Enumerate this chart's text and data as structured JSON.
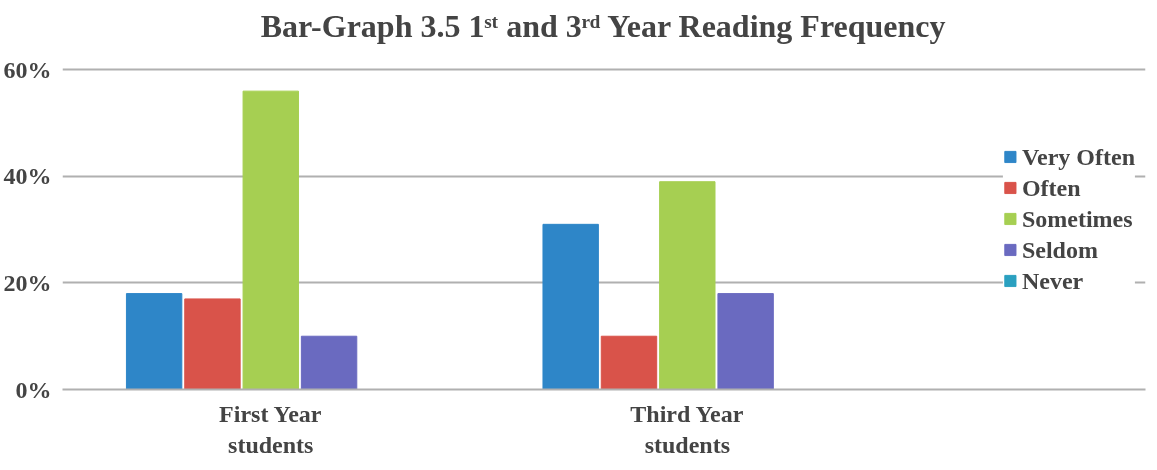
{
  "chart_data": {
    "type": "bar",
    "title": "Bar-Graph 3.5 1ˢᵗ and 3ʳᵈ Year Reading Frequency",
    "categories": [
      "First Year\nstudents",
      "Third Year\nstudents"
    ],
    "series": [
      {
        "name": "Very Often",
        "color": "#2e86c8",
        "values": [
          18,
          31
        ]
      },
      {
        "name": "Often",
        "color": "#d9534a",
        "values": [
          17,
          10
        ]
      },
      {
        "name": "Sometimes",
        "color": "#a6cf52",
        "values": [
          56,
          39
        ]
      },
      {
        "name": "Seldom",
        "color": "#6a6ac0",
        "values": [
          10,
          18
        ]
      },
      {
        "name": "Never",
        "color": "#2aa0c0",
        "values": [
          0,
          0
        ]
      }
    ],
    "ylim": [
      0,
      60
    ],
    "yticks": [
      {
        "value": 0,
        "label": "0%"
      },
      {
        "value": 20,
        "label": "20%"
      },
      {
        "value": 40,
        "label": "40%"
      },
      {
        "value": 60,
        "label": "60%"
      }
    ],
    "grid": "y",
    "legend": "right"
  }
}
